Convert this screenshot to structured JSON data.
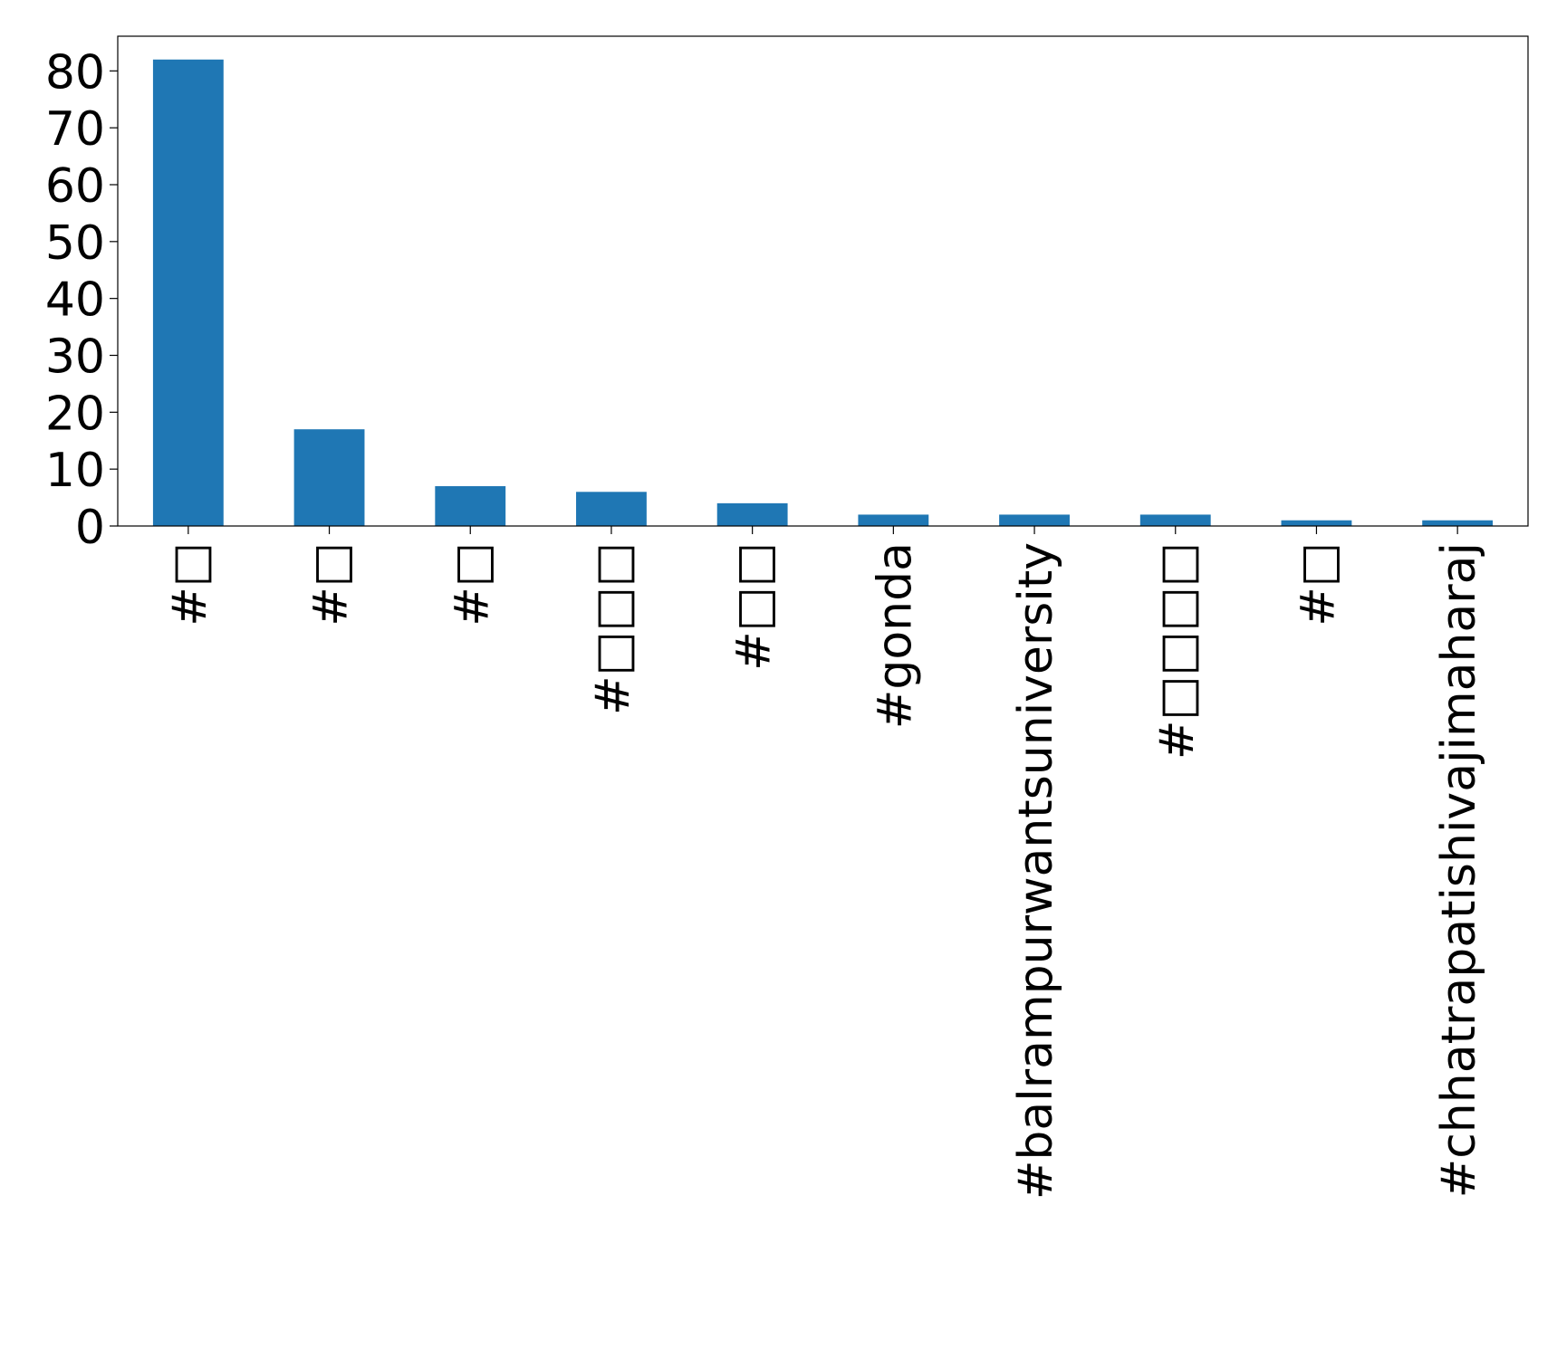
{
  "chart_data": {
    "type": "bar",
    "categories": [
      "#□",
      "#□",
      "#□",
      "#□□□",
      "#□□",
      "#gonda",
      "#balrampurwantsuniversity",
      "#□□□□",
      "#□",
      "#chhatrapatishivajimaharaj"
    ],
    "values": [
      82,
      17,
      7,
      6,
      4,
      2,
      2,
      2,
      1,
      1
    ],
    "color": "#1f77b4",
    "ylim": [
      0,
      86.1
    ],
    "yticks": [
      0,
      10,
      20,
      30,
      40,
      50,
      60,
      70,
      80
    ],
    "grid": false
  }
}
